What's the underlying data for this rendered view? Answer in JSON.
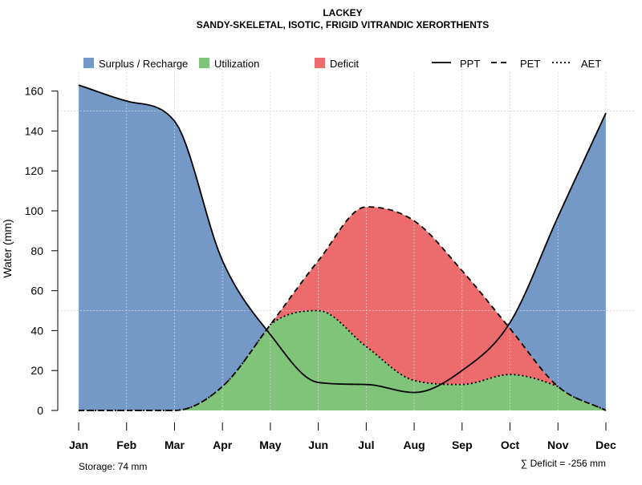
{
  "chart_data": {
    "type": "area",
    "title": "LACKEY",
    "subtitle": "SANDY-SKELETAL, ISOTIC, FRIGID VITRANDIC XERORTHENTS",
    "xlabel": "",
    "ylabel": "Water (mm)",
    "ylim": [
      0,
      170
    ],
    "yticks": [
      0,
      20,
      40,
      60,
      80,
      100,
      120,
      140,
      160
    ],
    "categories": [
      "Jan",
      "Feb",
      "Mar",
      "Apr",
      "May",
      "Jun",
      "Jul",
      "Aug",
      "Sep",
      "Oct",
      "Nov",
      "Dec"
    ],
    "series": [
      {
        "name": "PPT",
        "style": "solid",
        "values": [
          163,
          155,
          145,
          75,
          38,
          14,
          13,
          9,
          20,
          44,
          97,
          149
        ]
      },
      {
        "name": "PET",
        "style": "dashed",
        "values": [
          0,
          0,
          0,
          12,
          43,
          75,
          102,
          95,
          70,
          41,
          12,
          0
        ]
      },
      {
        "name": "AET",
        "style": "dotted",
        "values": [
          0,
          0,
          0,
          12,
          43,
          50,
          32,
          15,
          13,
          18,
          12,
          0
        ]
      }
    ],
    "legend": [
      {
        "label": "Surplus / Recharge",
        "kind": "area",
        "color": "#7499c6"
      },
      {
        "label": "Utilization",
        "kind": "area",
        "color": "#80c47a"
      },
      {
        "label": "Deficit",
        "kind": "area",
        "color": "#ec6b6d"
      },
      {
        "label": "PPT",
        "kind": "line",
        "style": "solid"
      },
      {
        "label": "PET",
        "kind": "line",
        "style": "dashed"
      },
      {
        "label": "AET",
        "kind": "line",
        "style": "dotted"
      }
    ],
    "legend_position": "top",
    "grid": true,
    "annotations": {
      "storage": "Storage: 74 mm",
      "deficit": "∑ Deficit = -256 mm"
    }
  }
}
